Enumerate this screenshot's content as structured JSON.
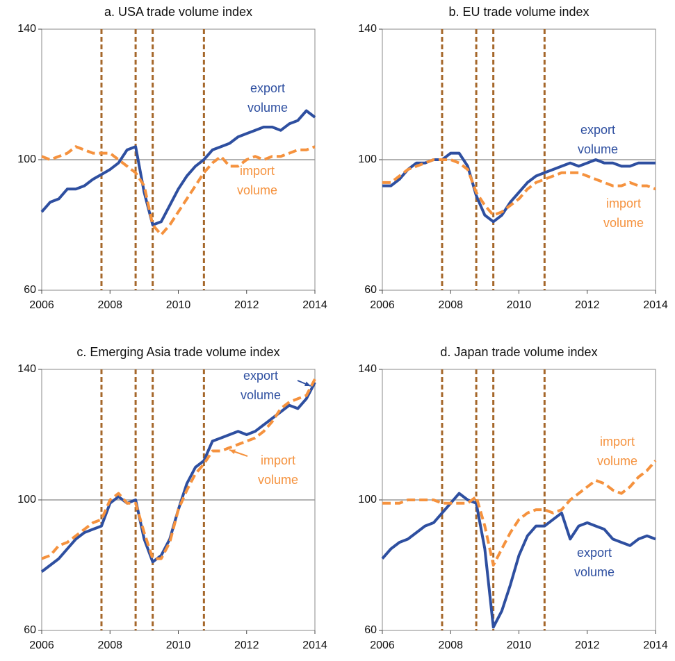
{
  "chart_data": [
    {
      "type": "line",
      "title": "a. USA trade volume index",
      "x": [
        2006,
        2006.25,
        2006.5,
        2006.75,
        2007,
        2007.25,
        2007.5,
        2007.75,
        2008,
        2008.25,
        2008.5,
        2008.75,
        2009,
        2009.25,
        2009.5,
        2009.75,
        2010,
        2010.25,
        2010.5,
        2010.75,
        2011,
        2011.25,
        2011.5,
        2011.75,
        2012,
        2012.25,
        2012.5,
        2012.75,
        2013,
        2013.25,
        2013.5,
        2013.75,
        2014
      ],
      "series": [
        {
          "name": [
            "export",
            "volume"
          ],
          "color": "#2e4fa0",
          "values": [
            84,
            87,
            88,
            91,
            91,
            92,
            94,
            95.5,
            97,
            99,
            103,
            104,
            90,
            80,
            81,
            86,
            91,
            95,
            98,
            100,
            103,
            104,
            105,
            107,
            108,
            109,
            110,
            110,
            109,
            111,
            112,
            115,
            113
          ]
        },
        {
          "name": [
            "import",
            "volume"
          ],
          "color": "#f5923e",
          "values": [
            101,
            100,
            101,
            102,
            104,
            103,
            102,
            102,
            102,
            100,
            98,
            96,
            92,
            80,
            77,
            80,
            84,
            88,
            92,
            96,
            99,
            101,
            98,
            98,
            100,
            101,
            100,
            101,
            101,
            102,
            103,
            103,
            104
          ]
        }
      ],
      "xlim": [
        2006,
        2014
      ],
      "xticks": [
        2006,
        2008,
        2010,
        2012,
        2014
      ],
      "ylim": [
        60,
        140
      ],
      "yticks": [
        60,
        100,
        140
      ],
      "hline": 100,
      "vlines": [
        2007.75,
        2008.75,
        2009.25,
        2010.75
      ]
    },
    {
      "type": "line",
      "title": "b. EU trade volume index",
      "x": [
        2006,
        2006.25,
        2006.5,
        2006.75,
        2007,
        2007.25,
        2007.5,
        2007.75,
        2008,
        2008.25,
        2008.5,
        2008.75,
        2009,
        2009.25,
        2009.5,
        2009.75,
        2010,
        2010.25,
        2010.5,
        2010.75,
        2011,
        2011.25,
        2011.5,
        2011.75,
        2012,
        2012.25,
        2012.5,
        2012.75,
        2013,
        2013.25,
        2013.5,
        2013.75,
        2014
      ],
      "series": [
        {
          "name": [
            "export",
            "volume"
          ],
          "color": "#2e4fa0",
          "values": [
            92,
            92,
            94,
            97,
            99,
            99,
            100,
            100,
            102,
            102,
            98,
            89,
            83,
            81,
            83,
            87,
            90,
            93,
            95,
            96,
            97,
            98,
            99,
            98,
            99,
            100,
            99,
            99,
            98,
            98,
            99,
            99,
            99
          ]
        },
        {
          "name": [
            "import",
            "volume"
          ],
          "color": "#f5923e",
          "values": [
            93,
            93,
            95,
            97,
            98,
            99,
            100,
            100,
            100,
            99,
            97,
            90,
            86,
            83,
            84,
            86,
            88,
            91,
            93,
            94,
            95,
            96,
            96,
            96,
            95,
            94,
            93,
            92,
            92,
            93,
            92,
            92,
            91
          ]
        }
      ],
      "xlim": [
        2006,
        2014
      ],
      "xticks": [
        2006,
        2008,
        2010,
        2012,
        2014
      ],
      "ylim": [
        60,
        140
      ],
      "yticks": [
        60,
        100,
        140
      ],
      "hline": 100,
      "vlines": [
        2007.75,
        2008.75,
        2009.25,
        2010.75
      ]
    },
    {
      "type": "line",
      "title": "c. Emerging Asia trade volume index",
      "x": [
        2006,
        2006.25,
        2006.5,
        2006.75,
        2007,
        2007.25,
        2007.5,
        2007.75,
        2008,
        2008.25,
        2008.5,
        2008.75,
        2009,
        2009.25,
        2009.5,
        2009.75,
        2010,
        2010.25,
        2010.5,
        2010.75,
        2011,
        2011.25,
        2011.5,
        2011.75,
        2012,
        2012.25,
        2012.5,
        2012.75,
        2013,
        2013.25,
        2013.5,
        2013.75,
        2014
      ],
      "series": [
        {
          "name": [
            "export",
            "volume"
          ],
          "color": "#2e4fa0",
          "values": [
            78,
            80,
            82,
            85,
            88,
            90,
            91,
            92,
            99,
            101,
            99,
            100,
            88,
            81,
            83,
            88,
            97,
            105,
            110,
            112,
            118,
            119,
            120,
            121,
            120,
            121,
            123,
            125,
            127,
            129,
            128,
            131,
            136
          ]
        },
        {
          "name": [
            "import",
            "volume"
          ],
          "color": "#f5923e",
          "values": [
            82,
            83,
            86,
            87,
            89,
            91,
            93,
            94,
            100,
            102,
            99,
            99,
            90,
            82,
            82,
            87,
            97,
            103,
            108,
            111,
            115,
            115,
            116,
            117,
            118,
            119,
            121,
            124,
            128,
            130,
            131,
            132,
            137
          ]
        }
      ],
      "xlim": [
        2006,
        2014
      ],
      "xticks": [
        2006,
        2008,
        2010,
        2012,
        2014
      ],
      "ylim": [
        60,
        140
      ],
      "yticks": [
        60,
        100,
        140
      ],
      "hline": 100,
      "vlines": [
        2007.75,
        2008.75,
        2009.25,
        2010.75
      ]
    },
    {
      "type": "line",
      "title": "d. Japan trade volume index",
      "x": [
        2006,
        2006.25,
        2006.5,
        2006.75,
        2007,
        2007.25,
        2007.5,
        2007.75,
        2008,
        2008.25,
        2008.5,
        2008.75,
        2009,
        2009.25,
        2009.5,
        2009.75,
        2010,
        2010.25,
        2010.5,
        2010.75,
        2011,
        2011.25,
        2011.5,
        2011.75,
        2012,
        2012.25,
        2012.5,
        2012.75,
        2013,
        2013.25,
        2013.5,
        2013.75,
        2014
      ],
      "series": [
        {
          "name": [
            "export",
            "volume"
          ],
          "color": "#2e4fa0",
          "values": [
            82,
            85,
            87,
            88,
            90,
            92,
            93,
            96,
            99,
            102,
            100,
            99,
            85,
            61,
            66,
            74,
            83,
            89,
            92,
            92,
            94,
            96,
            88,
            92,
            93,
            92,
            91,
            88,
            87,
            86,
            88,
            89,
            88
          ]
        },
        {
          "name": [
            "import",
            "volume"
          ],
          "color": "#f5923e",
          "values": [
            99,
            99,
            99,
            100,
            100,
            100,
            100,
            99,
            99,
            99,
            99,
            101,
            92,
            80,
            85,
            90,
            94,
            96,
            97,
            97,
            96,
            97,
            100,
            102,
            104,
            106,
            105,
            103,
            102,
            104,
            107,
            109,
            112
          ]
        }
      ],
      "xlim": [
        2006,
        2014
      ],
      "xticks": [
        2006,
        2008,
        2010,
        2012,
        2014
      ],
      "ylim": [
        60,
        140
      ],
      "yticks": [
        60,
        100,
        140
      ],
      "hline": 100,
      "vlines": [
        2007.75,
        2008.75,
        2009.25,
        2010.75
      ]
    }
  ]
}
